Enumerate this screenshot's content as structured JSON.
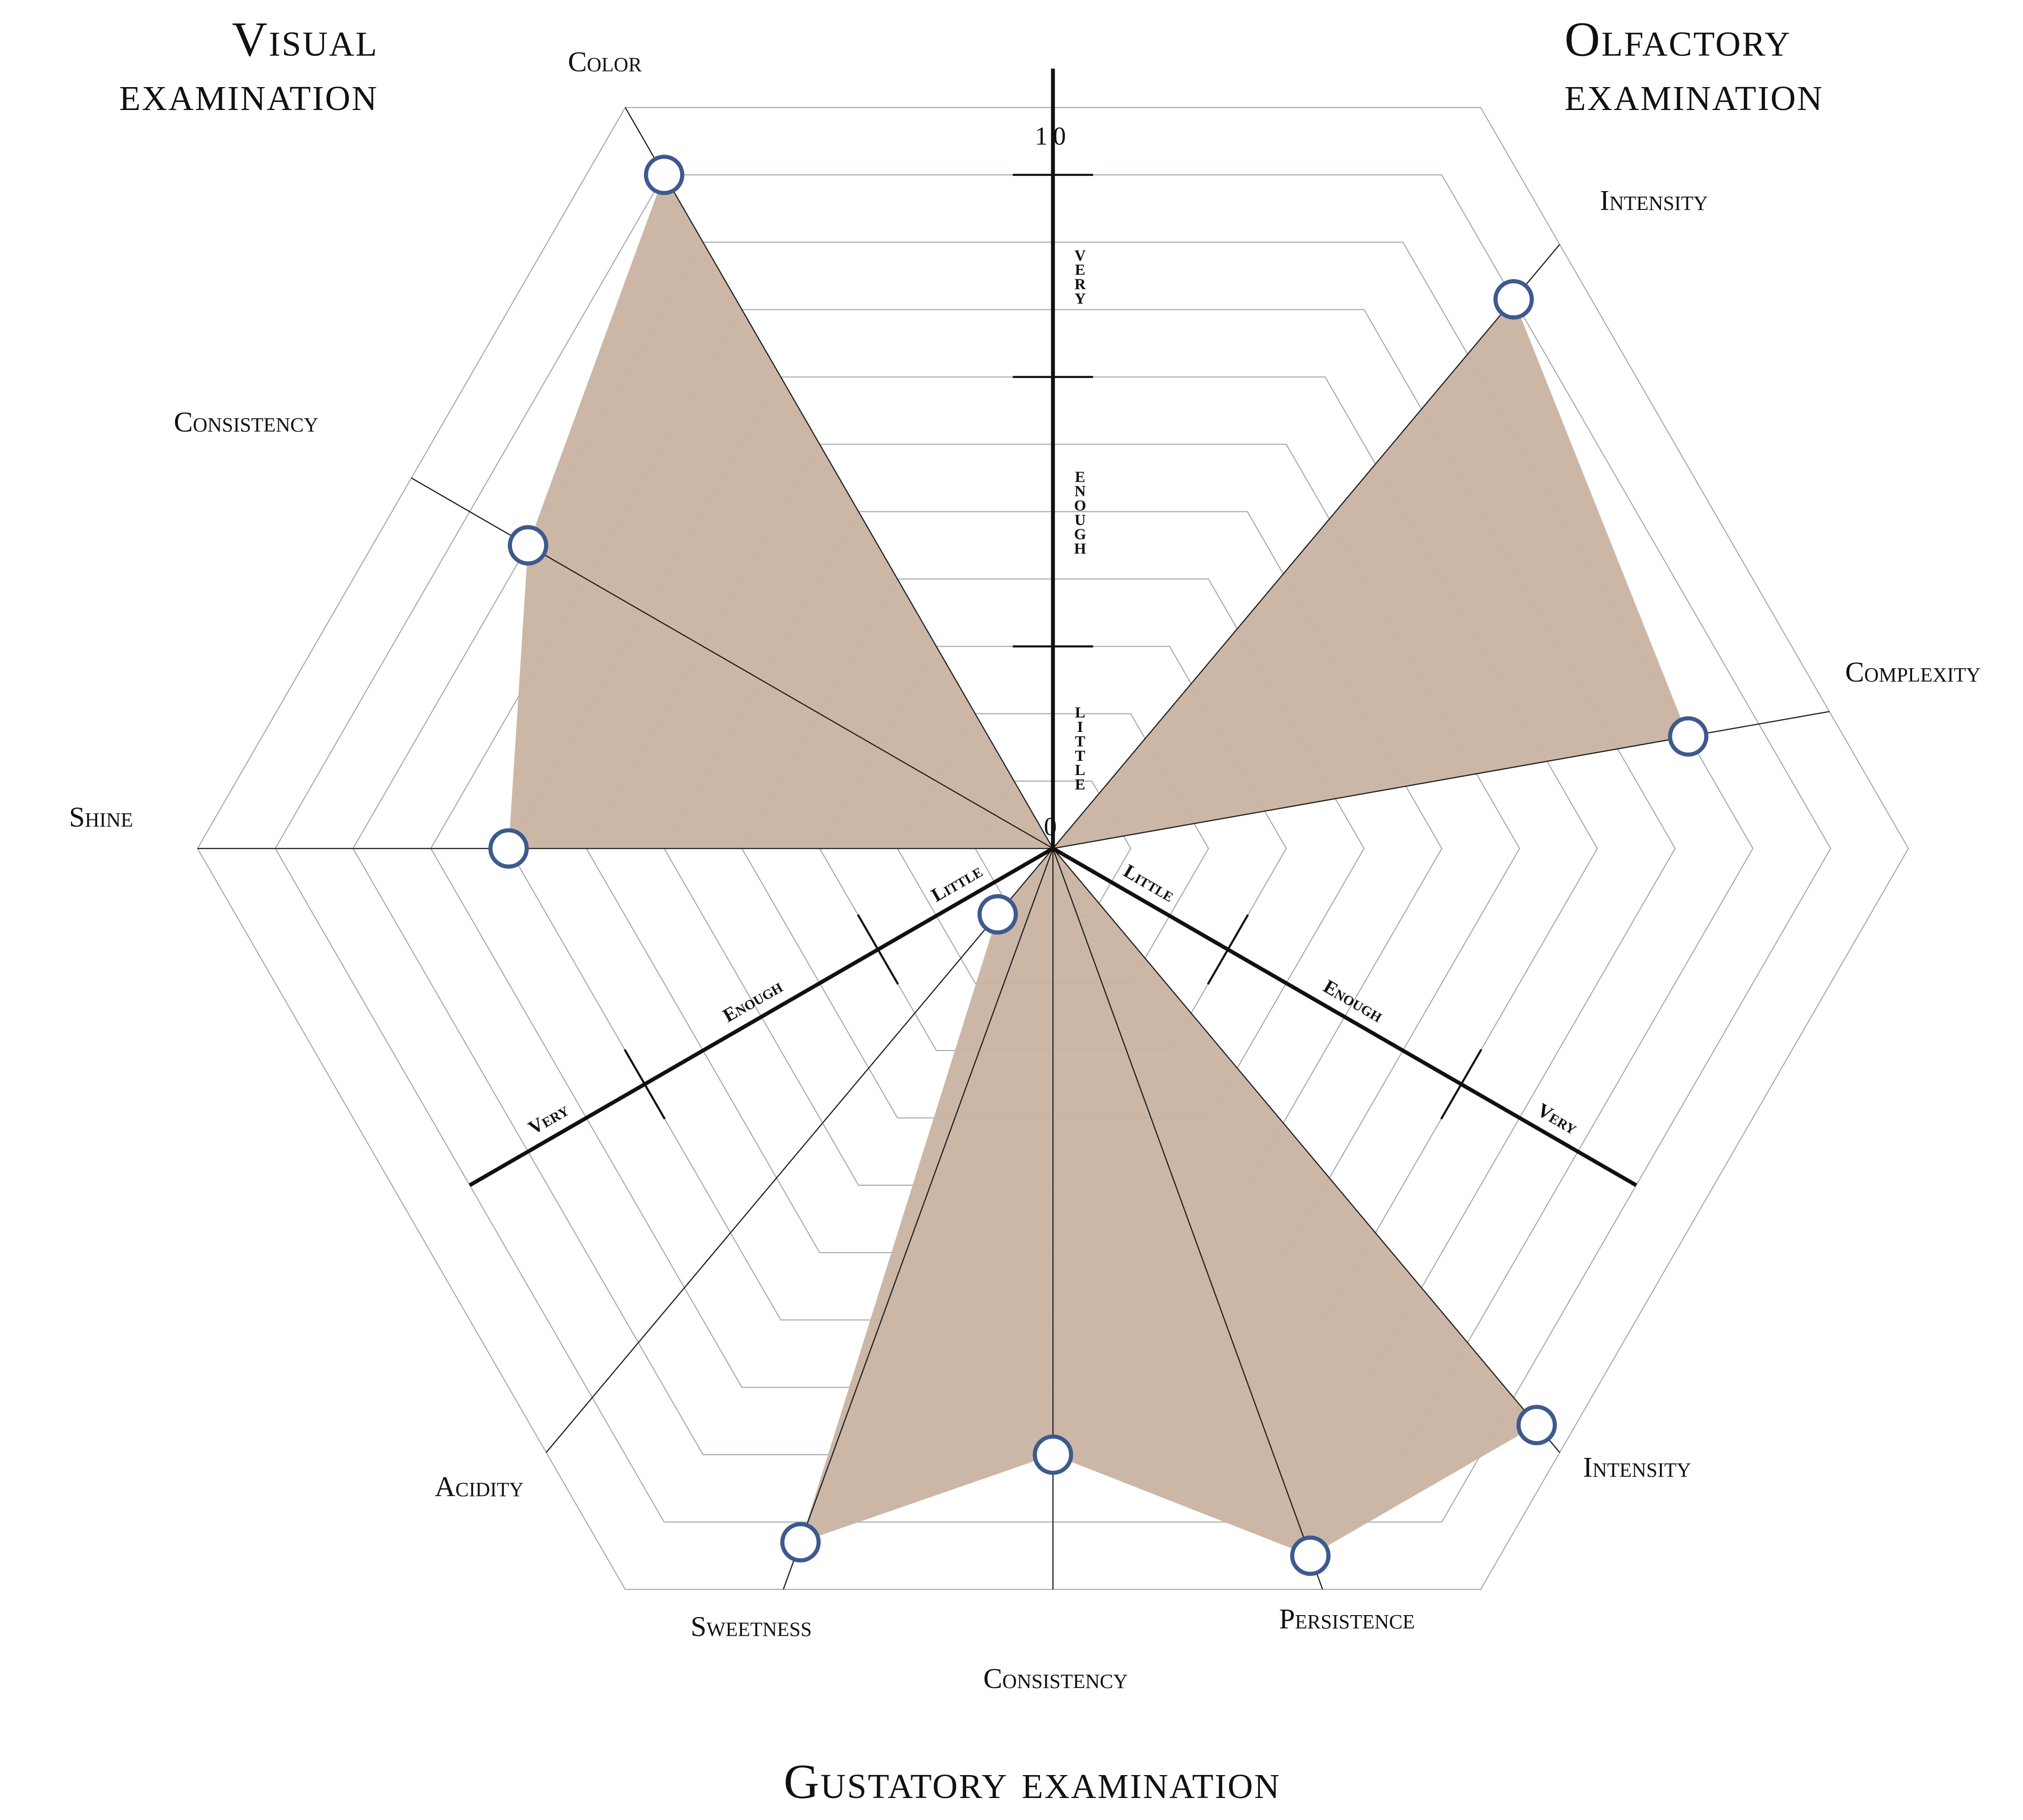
{
  "chart_data": {
    "type": "radar",
    "groups": [
      {
        "title": "Visual examination",
        "axes": [
          "Color",
          "Consistency",
          "Shine"
        ],
        "values": [
          10,
          9,
          7
        ]
      },
      {
        "title": "Olfactory examination",
        "axes": [
          "Intensity",
          "Complexity"
        ],
        "values": [
          10,
          9
        ]
      },
      {
        "title": "Gustatory examination",
        "axes": [
          "Intensity",
          "Persistence",
          "Consistency",
          "Sweetness",
          "Acidity"
        ],
        "values": [
          10.5,
          10.5,
          9,
          10.3,
          1.2
        ]
      }
    ],
    "rlim": [
      0,
      11
    ],
    "rticks": [
      0,
      10
    ],
    "bands": [
      {
        "label": "Little",
        "from": 0,
        "to": 3
      },
      {
        "label": "Enough",
        "from": 3,
        "to": 7
      },
      {
        "label": "Very",
        "from": 7,
        "to": 10
      }
    ],
    "grid": true,
    "fill_color": "#c9b3a2",
    "marker_color": "#3d5a8e"
  }
}
